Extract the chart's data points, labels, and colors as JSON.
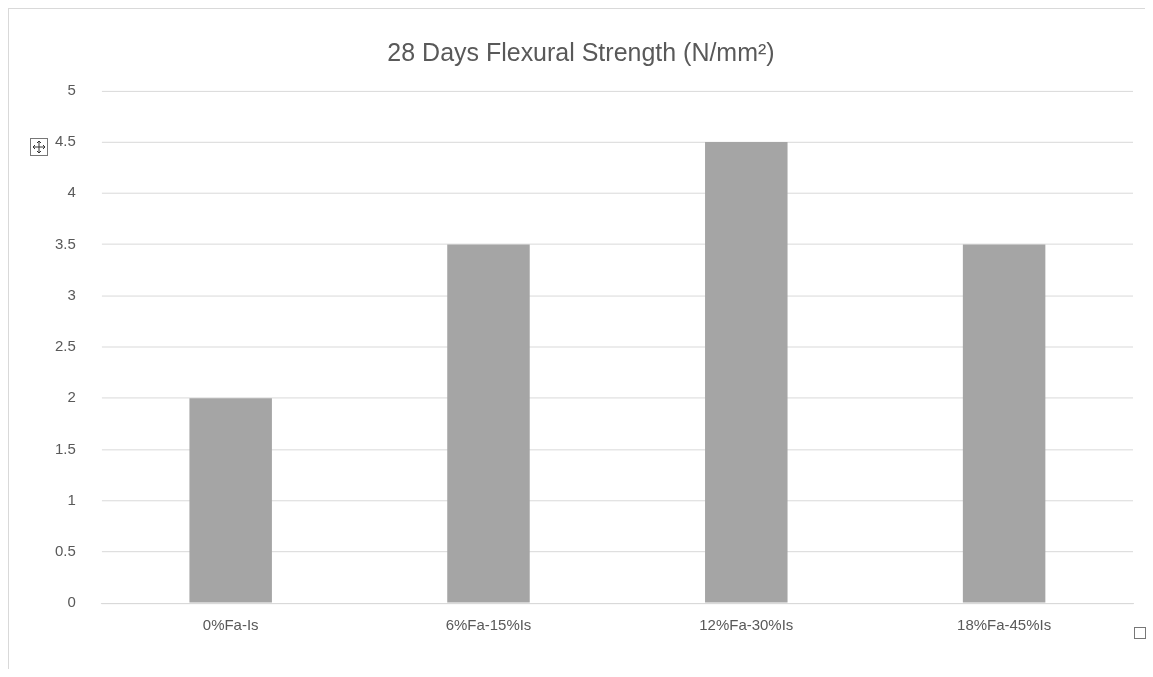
{
  "chart_data": {
    "type": "bar",
    "title": "28 Days Flexural Strength (N/mm²)",
    "categories": [
      "0%Fa-Is",
      "6%Fa-15%Is",
      "12%Fa-30%Is",
      "18%Fa-45%Is"
    ],
    "values": [
      2,
      3.5,
      4.5,
      3.5
    ],
    "color": "#a5a5a5",
    "ylim": [
      0,
      5
    ],
    "yticks": [
      0,
      0.5,
      1,
      1.5,
      2,
      2.5,
      3,
      3.5,
      4,
      4.5,
      5
    ],
    "grid": "y",
    "legend": false
  }
}
